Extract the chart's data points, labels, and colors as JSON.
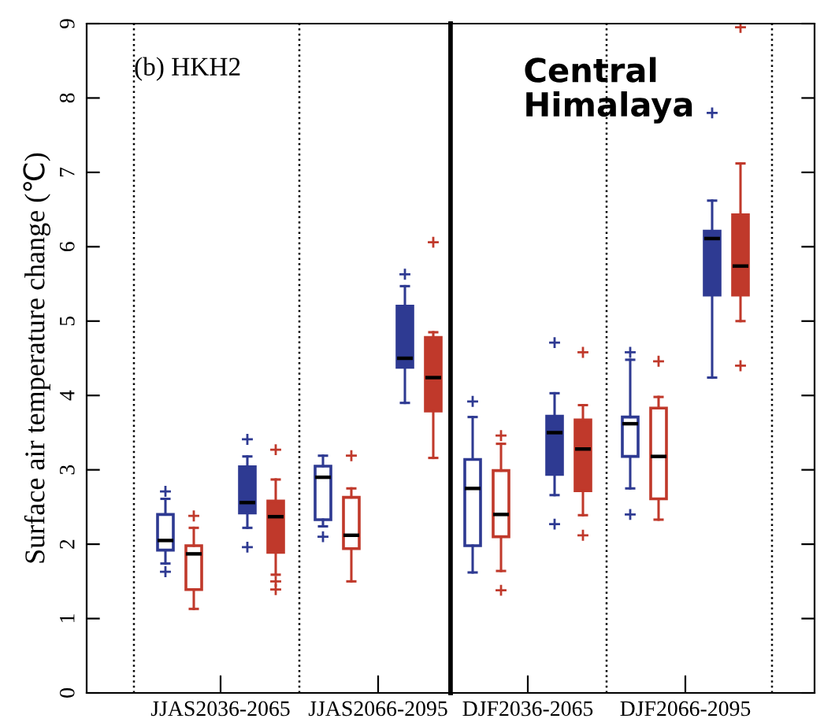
{
  "chart_data": [
    {
      "type": "box",
      "ylabel": "Surface air temperature change (℃)",
      "categories": [
        "JJAS2036-2065",
        "JJAS2066-2095"
      ],
      "ylim": [
        0,
        9
      ],
      "yticks": [
        0,
        1,
        2,
        3,
        4,
        5,
        6,
        7,
        8,
        9
      ],
      "marker": "cross",
      "annotations": [
        "(b) HKH2"
      ],
      "series": [
        {
          "color": "#2e3a92",
          "boxes": [
            {
              "low": 1.74,
              "q1": 1.92,
              "median": 2.05,
              "q3": 2.4,
              "high": 2.61,
              "outliers": [
                2.71,
                1.63
              ]
            },
            {
              "low": 2.24,
              "q1": 2.33,
              "median": 2.9,
              "q3": 3.05,
              "high": 3.19,
              "outliers": [
                2.1
              ]
            }
          ]
        },
        {
          "color": "#c0392b",
          "boxes": [
            {
              "low": 1.13,
              "q1": 1.39,
              "median": 1.87,
              "q3": 1.98,
              "high": 2.22,
              "outliers": [
                2.38
              ]
            },
            {
              "low": 1.5,
              "q1": 1.94,
              "median": 2.12,
              "q3": 2.63,
              "high": 2.75,
              "outliers": [
                3.19
              ]
            }
          ]
        },
        {
          "color": "#2e3a92",
          "boxes": [
            {
              "low": 2.22,
              "q1": 2.42,
              "median": 2.56,
              "q3": 3.04,
              "high": 3.18,
              "outliers": [
                3.41,
                1.96
              ]
            },
            {
              "low": 3.9,
              "q1": 4.38,
              "median": 4.5,
              "q3": 5.2,
              "high": 5.47,
              "outliers": [
                5.63
              ]
            }
          ]
        },
        {
          "color": "#c0392b",
          "boxes": [
            {
              "low": 1.59,
              "q1": 1.89,
              "median": 2.37,
              "q3": 2.58,
              "high": 2.87,
              "outliers": [
                3.27,
                1.5,
                1.39
              ]
            },
            {
              "low": 3.16,
              "q1": 3.79,
              "median": 4.24,
              "q3": 4.78,
              "high": 4.85,
              "outliers": [
                6.06
              ]
            }
          ]
        }
      ]
    },
    {
      "type": "box",
      "categories": [
        "DJF2036-2065",
        "DJF2066-2095"
      ],
      "ylim": [
        0,
        9
      ],
      "yticks": [
        0,
        1,
        2,
        3,
        4,
        5,
        6,
        7,
        8,
        9
      ],
      "tick_labels": "x",
      "marker": "cross",
      "annotations": [
        "Central Himalaya"
      ],
      "series": [
        {
          "color": "#2e3a92",
          "boxes": [
            {
              "low": 1.62,
              "q1": 1.98,
              "median": 2.75,
              "q3": 3.14,
              "high": 3.71,
              "outliers": [
                3.92
              ]
            },
            {
              "low": 2.75,
              "q1": 3.18,
              "median": 3.62,
              "q3": 3.71,
              "high": 4.48,
              "outliers": [
                4.58,
                2.4
              ]
            }
          ]
        },
        {
          "color": "#c0392b",
          "boxes": [
            {
              "low": 1.64,
              "q1": 2.1,
              "median": 2.4,
              "q3": 2.99,
              "high": 3.35,
              "outliers": [
                3.46,
                1.38
              ]
            },
            {
              "low": 2.33,
              "q1": 2.61,
              "median": 3.18,
              "q3": 3.83,
              "high": 3.98,
              "outliers": [
                4.46
              ]
            }
          ]
        },
        {
          "color": "#2e3a92",
          "boxes": [
            {
              "low": 2.66,
              "q1": 2.94,
              "median": 3.5,
              "q3": 3.72,
              "high": 4.03,
              "outliers": [
                4.71,
                2.27
              ]
            },
            {
              "low": 4.24,
              "q1": 5.35,
              "median": 6.11,
              "q3": 6.21,
              "high": 6.62,
              "outliers": [
                7.8
              ]
            }
          ]
        },
        {
          "color": "#c0392b",
          "boxes": [
            {
              "low": 2.39,
              "q1": 2.72,
              "median": 3.28,
              "q3": 3.67,
              "high": 3.87,
              "outliers": [
                4.58,
                2.12
              ]
            },
            {
              "low": 5.0,
              "q1": 5.35,
              "median": 5.74,
              "q3": 6.43,
              "high": 7.12,
              "outliers": [
                8.95,
                4.4
              ]
            }
          ]
        }
      ]
    }
  ]
}
